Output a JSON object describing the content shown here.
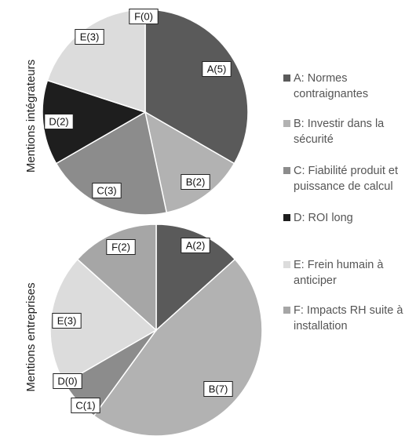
{
  "chart_data": [
    {
      "type": "pie",
      "title": "",
      "ylabel": "Mentions intégrateurs",
      "categories": [
        "A",
        "B",
        "C",
        "D",
        "E",
        "F"
      ],
      "values": [
        5,
        2,
        3,
        2,
        3,
        0
      ],
      "slice_labels": [
        "A(5)",
        "B(2)",
        "C(3)",
        "D(2)",
        "E(3)",
        "F(0)"
      ]
    },
    {
      "type": "pie",
      "title": "",
      "ylabel": "Mentions entreprises",
      "categories": [
        "A",
        "B",
        "C",
        "D",
        "E",
        "F"
      ],
      "values": [
        2,
        7,
        1,
        0,
        3,
        2
      ],
      "slice_labels": [
        "A(2)",
        "B(7)",
        "C(1)",
        "D(0)",
        "E(3)",
        "F(2)"
      ]
    }
  ],
  "legend": {
    "placement": "right",
    "items": [
      {
        "key": "A",
        "lines": [
          "A: Normes",
          "contraignantes"
        ],
        "color": "#5a5a5a"
      },
      {
        "key": "B",
        "lines": [
          "B: Investir dans la",
          "sécurité"
        ],
        "color": "#b2b2b2"
      },
      {
        "key": "C",
        "lines": [
          "C: Fiabilité produit et",
          "puissance de calcul"
        ],
        "color": "#8c8c8c"
      },
      {
        "key": "D",
        "lines": [
          "D: ROI long"
        ],
        "color": "#1e1e1e"
      },
      {
        "key": "E",
        "lines": [
          "E: Frein humain à",
          "anticiper"
        ],
        "color": "#dcdcdc"
      },
      {
        "key": "F",
        "lines": [
          "F: Impacts RH suite à",
          "installation"
        ],
        "color": "#a6a6a6"
      }
    ]
  }
}
